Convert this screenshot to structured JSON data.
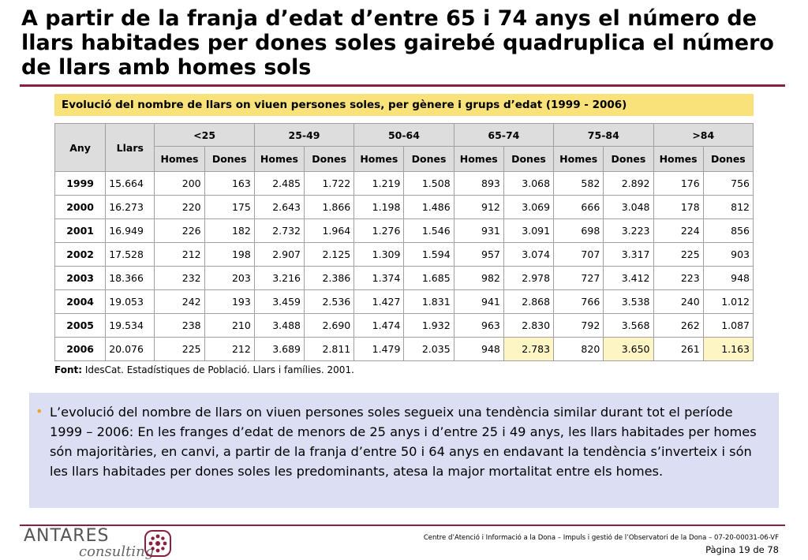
{
  "title": "A partir de la franja d’edat d’entre 65 i 74 anys el número de llars habitades per dones soles gairebé quadruplica el número de llars amb homes sols",
  "subtitle": "Evolució del nombre de llars on viuen persones soles, per gènere i grups d’edat (1999 - 2006)",
  "table": {
    "col_any": "Any",
    "col_llars": "Llars",
    "age_groups": [
      "<25",
      "25-49",
      "50-64",
      "65-74",
      "75-84",
      ">84"
    ],
    "gender_labels": [
      "Homes",
      "Dones"
    ],
    "rows": [
      {
        "year": "1999",
        "llars": "15.664",
        "values": [
          "200",
          "163",
          "2.485",
          "1.722",
          "1.219",
          "1.508",
          "893",
          "3.068",
          "582",
          "2.892",
          "176",
          "756"
        ]
      },
      {
        "year": "2000",
        "llars": "16.273",
        "values": [
          "220",
          "175",
          "2.643",
          "1.866",
          "1.198",
          "1.486",
          "912",
          "3.069",
          "666",
          "3.048",
          "178",
          "812"
        ]
      },
      {
        "year": "2001",
        "llars": "16.949",
        "values": [
          "226",
          "182",
          "2.732",
          "1.964",
          "1.276",
          "1.546",
          "931",
          "3.091",
          "698",
          "3.223",
          "224",
          "856"
        ]
      },
      {
        "year": "2002",
        "llars": "17.528",
        "values": [
          "212",
          "198",
          "2.907",
          "2.125",
          "1.309",
          "1.594",
          "957",
          "3.074",
          "707",
          "3.317",
          "225",
          "903"
        ]
      },
      {
        "year": "2003",
        "llars": "18.366",
        "values": [
          "232",
          "203",
          "3.216",
          "2.386",
          "1.374",
          "1.685",
          "982",
          "2.978",
          "727",
          "3.412",
          "223",
          "948"
        ]
      },
      {
        "year": "2004",
        "llars": "19.053",
        "values": [
          "242",
          "193",
          "3.459",
          "2.536",
          "1.427",
          "1.831",
          "941",
          "2.868",
          "766",
          "3.538",
          "240",
          "1.012"
        ]
      },
      {
        "year": "2005",
        "llars": "19.534",
        "values": [
          "238",
          "210",
          "3.488",
          "2.690",
          "1.474",
          "1.932",
          "963",
          "2.830",
          "792",
          "3.568",
          "262",
          "1.087"
        ]
      },
      {
        "year": "2006",
        "llars": "20.076",
        "values": [
          "225",
          "212",
          "3.689",
          "2.811",
          "1.479",
          "2.035",
          "948",
          "2.783",
          "820",
          "3.650",
          "261",
          "1.163"
        ]
      }
    ],
    "highlight_row": 7,
    "highlight_cols": [
      7,
      9,
      11
    ]
  },
  "source_label": "Font:",
  "source_text": " IdesCat. Estadístiques de Població. Llars i famílies. 2001.",
  "bullet_text": "L’evolució del nombre de llars on viuen persones soles segueix una tendència similar durant tot el període 1999 – 2006: En les franges d’edat de menors de 25 anys i d’entre 25 i 49 anys, les llars habitades per homes són majoritàries, en canvi, a partir de la franja d’entre 50 i 64 anys en endavant la tendència s’inverteix i són les llars habitades per dones soles les predominants, atesa la major mortalitat entre els homes.",
  "footer": {
    "logo_top": "ANTARES",
    "logo_bottom": "consulting",
    "info": "Centre d’Atenció i Informació a la Dona – Impuls i gestió de l’Observatori de la Dona – 07-20-00031-06-VF",
    "page": "Pàgina 19 de 78"
  },
  "colors": {
    "accent_rule": "#8b1f3f",
    "subtitle_bg": "#f9e27a",
    "bullet_bg": "#dcdff4",
    "highlight_cell": "#fdf5c4"
  }
}
